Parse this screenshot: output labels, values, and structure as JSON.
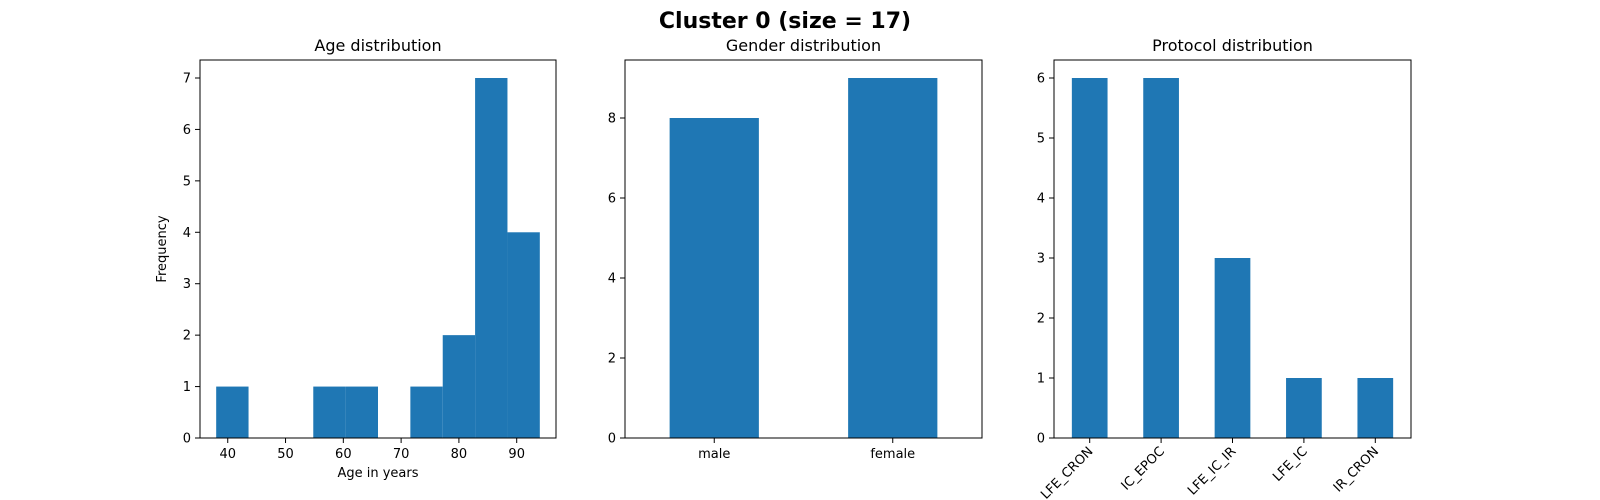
{
  "figure_title": "Cluster 0 (size = 17)",
  "colors": {
    "bar": "#1f77b4"
  },
  "chart_data": [
    {
      "type": "bar",
      "subtype": "histogram",
      "title": "Age distribution",
      "xlabel": "Age in years",
      "ylabel": "Frequency",
      "bins": [
        {
          "start": 38.0,
          "end": 43.6,
          "count": 1
        },
        {
          "start": 43.6,
          "end": 49.2,
          "count": 0
        },
        {
          "start": 49.2,
          "end": 54.8,
          "count": 0
        },
        {
          "start": 54.8,
          "end": 60.4,
          "count": 1
        },
        {
          "start": 60.4,
          "end": 66.0,
          "count": 1
        },
        {
          "start": 66.0,
          "end": 71.6,
          "count": 0
        },
        {
          "start": 71.6,
          "end": 77.2,
          "count": 1
        },
        {
          "start": 77.2,
          "end": 82.8,
          "count": 2
        },
        {
          "start": 82.8,
          "end": 88.4,
          "count": 7
        },
        {
          "start": 88.4,
          "end": 94.0,
          "count": 4
        }
      ],
      "xlim": [
        35.2,
        96.8
      ],
      "ylim": [
        0,
        7.35
      ],
      "xticks": [
        40,
        50,
        60,
        70,
        80,
        90
      ],
      "yticks": [
        0,
        1,
        2,
        3,
        4,
        5,
        6,
        7
      ]
    },
    {
      "type": "bar",
      "title": "Gender distribution",
      "categories": [
        "male",
        "female"
      ],
      "values": [
        8,
        9
      ],
      "ylim": [
        0,
        9.45
      ],
      "yticks": [
        0,
        2,
        4,
        6,
        8
      ]
    },
    {
      "type": "bar",
      "title": "Protocol distribution",
      "categories": [
        "LFE_CRON",
        "IC_EPOC",
        "LFE_IC_IR",
        "LFE_IC",
        "IR_CRON"
      ],
      "values": [
        6,
        6,
        3,
        1,
        1
      ],
      "ylim": [
        0,
        6.3
      ],
      "yticks": [
        0,
        1,
        2,
        3,
        4,
        5,
        6
      ],
      "tick_rotation": 45
    }
  ]
}
